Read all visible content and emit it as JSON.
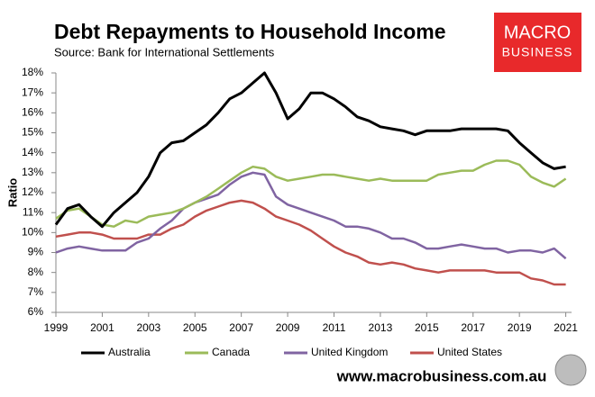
{
  "chart_data": {
    "type": "line",
    "title": "Debt Repayments to Household Income",
    "subtitle": "Source: Bank for International Settlements",
    "y_label": "Ratio",
    "logo": [
      "MACRO",
      "BUSINESS"
    ],
    "website": "www.macrobusiness.com.au",
    "x": [
      1999,
      1999.5,
      2000,
      2000.5,
      2001,
      2001.5,
      2002,
      2002.5,
      2003,
      2003.5,
      2004,
      2004.5,
      2005,
      2005.5,
      2006,
      2006.5,
      2007,
      2007.5,
      2008,
      2008.5,
      2009,
      2009.5,
      2010,
      2010.5,
      2011,
      2011.5,
      2012,
      2012.5,
      2013,
      2013.5,
      2014,
      2014.5,
      2015,
      2015.5,
      2016,
      2016.5,
      2017,
      2017.5,
      2018,
      2018.5,
      2019,
      2019.5,
      2020,
      2020.5,
      2021
    ],
    "series": [
      {
        "name": "Australia",
        "color": "#000000",
        "values": [
          10.4,
          11.2,
          11.4,
          10.8,
          10.3,
          11.0,
          11.5,
          12.0,
          12.8,
          14.0,
          14.5,
          14.6,
          15.0,
          15.4,
          16.0,
          16.7,
          17.0,
          17.5,
          18.0,
          17.0,
          15.7,
          16.2,
          17.0,
          17.0,
          16.7,
          16.3,
          15.8,
          15.6,
          15.3,
          15.2,
          15.1,
          14.9,
          15.1,
          15.1,
          15.1,
          15.2,
          15.2,
          15.2,
          15.2,
          15.1,
          14.5,
          14.0,
          13.5,
          13.2,
          13.3
        ]
      },
      {
        "name": "Canada",
        "color": "#9bbb59",
        "values": [
          10.7,
          11.1,
          11.2,
          10.8,
          10.4,
          10.3,
          10.6,
          10.5,
          10.8,
          10.9,
          11.0,
          11.2,
          11.5,
          11.8,
          12.2,
          12.6,
          13.0,
          13.3,
          13.2,
          12.8,
          12.6,
          12.7,
          12.8,
          12.9,
          12.9,
          12.8,
          12.7,
          12.6,
          12.7,
          12.6,
          12.6,
          12.6,
          12.6,
          12.9,
          13.0,
          13.1,
          13.1,
          13.4,
          13.6,
          13.6,
          13.4,
          12.8,
          12.5,
          12.3,
          12.7
        ]
      },
      {
        "name": "United Kingdom",
        "color": "#8064a2",
        "values": [
          9.0,
          9.2,
          9.3,
          9.2,
          9.1,
          9.1,
          9.1,
          9.5,
          9.7,
          10.2,
          10.6,
          11.2,
          11.5,
          11.7,
          11.9,
          12.4,
          12.8,
          13.0,
          12.9,
          11.8,
          11.4,
          11.2,
          11.0,
          10.8,
          10.6,
          10.3,
          10.3,
          10.2,
          10.0,
          9.7,
          9.7,
          9.5,
          9.2,
          9.2,
          9.3,
          9.4,
          9.3,
          9.2,
          9.2,
          9.0,
          9.1,
          9.1,
          9.0,
          9.2,
          8.7
        ]
      },
      {
        "name": "United States",
        "color": "#c0504d",
        "values": [
          9.8,
          9.9,
          10.0,
          10.0,
          9.9,
          9.7,
          9.7,
          9.7,
          9.9,
          9.9,
          10.2,
          10.4,
          10.8,
          11.1,
          11.3,
          11.5,
          11.6,
          11.5,
          11.2,
          10.8,
          10.6,
          10.4,
          10.1,
          9.7,
          9.3,
          9.0,
          8.8,
          8.5,
          8.4,
          8.5,
          8.4,
          8.2,
          8.1,
          8.0,
          8.1,
          8.1,
          8.1,
          8.1,
          8.0,
          8.0,
          8.0,
          7.7,
          7.6,
          7.4,
          7.4
        ]
      }
    ],
    "xlim": [
      1999,
      2021.25
    ],
    "xticks": [
      1999,
      2001,
      2003,
      2005,
      2007,
      2009,
      2011,
      2013,
      2015,
      2017,
      2019,
      2021
    ],
    "ylim": [
      6,
      18
    ],
    "yticks": [
      {
        "value": 6,
        "label": "6%"
      },
      {
        "value": 7,
        "label": "7%"
      },
      {
        "value": 8,
        "label": "8%"
      },
      {
        "value": 9,
        "label": "9%"
      },
      {
        "value": 10,
        "label": "10%"
      },
      {
        "value": 11,
        "label": "11%"
      },
      {
        "value": 12,
        "label": "12%"
      },
      {
        "value": 13,
        "label": "13%"
      },
      {
        "value": 14,
        "label": "14%"
      },
      {
        "value": 15,
        "label": "15%"
      },
      {
        "value": 16,
        "label": "16%"
      },
      {
        "value": 17,
        "label": "17%"
      },
      {
        "value": 18,
        "label": "18%"
      }
    ],
    "grid": false
  }
}
